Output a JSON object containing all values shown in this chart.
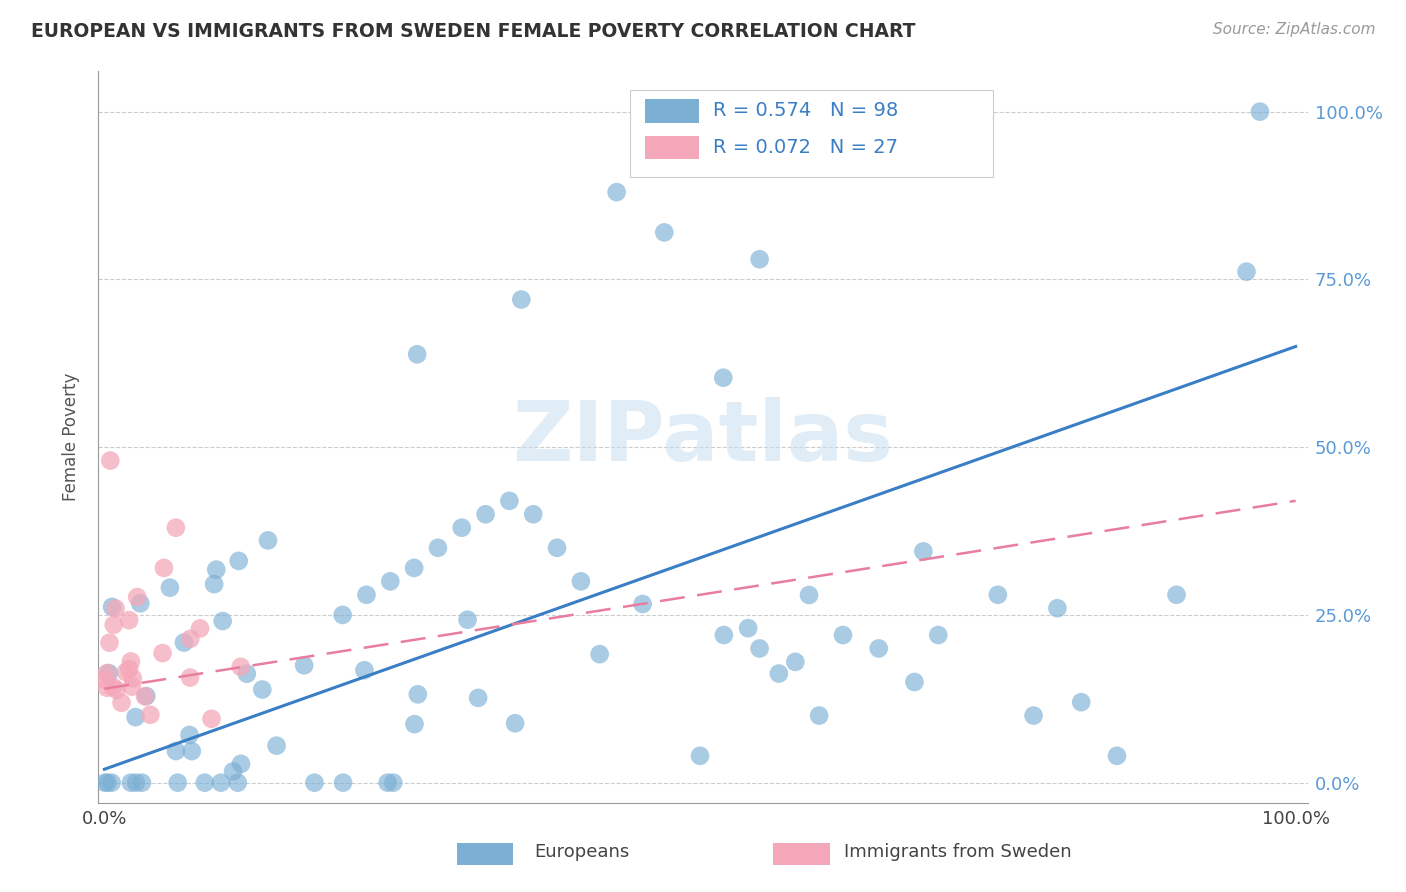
{
  "title": "EUROPEAN VS IMMIGRANTS FROM SWEDEN FEMALE POVERTY CORRELATION CHART",
  "source": "Source: ZipAtlas.com",
  "ylabel": "Female Poverty",
  "legend_blue_label": "R = 0.574   N = 98",
  "legend_pink_label": "R = 0.072   N = 27",
  "blue_color": "#7BAFD4",
  "pink_color": "#F4A7B9",
  "blue_line_color": "#3A7EC6",
  "pink_line_color": "#E87DA0",
  "watermark": "ZIPatlas",
  "ytick_labels": [
    "0.0%",
    "25.0%",
    "50.0%",
    "75.0%",
    "100.0%"
  ],
  "ytick_vals": [
    0.0,
    0.25,
    0.5,
    0.75,
    1.0
  ],
  "xtick_left": "0.0%",
  "xtick_right": "100.0%",
  "legend_europeans": "Europeans",
  "legend_immigrants": "Immigrants from Sweden"
}
